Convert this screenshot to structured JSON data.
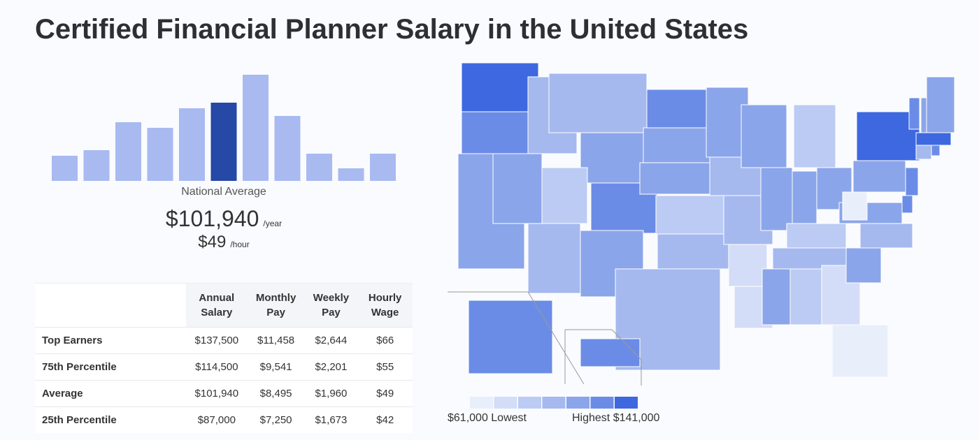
{
  "title": "Certified Financial Planner Salary in the United States",
  "histogram": {
    "type": "bar",
    "values": [
      36,
      44,
      84,
      76,
      104,
      112,
      152,
      93,
      39,
      18,
      39
    ],
    "color": "#a9baf1",
    "highlight_color": "#2648a6",
    "highlight_index": 5
  },
  "national": {
    "label": "National Average",
    "yearly": "$101,940",
    "yearly_unit": "/year",
    "hourly": "$49",
    "hourly_unit": "/hour"
  },
  "table": {
    "headers": [
      "Annual Salary",
      "Monthly Pay",
      "Weekly Pay",
      "Hourly Wage"
    ],
    "rows": [
      {
        "label": "Top Earners",
        "cells": [
          "$137,500",
          "$11,458",
          "$2,644",
          "$66"
        ]
      },
      {
        "label": "75th Percentile",
        "cells": [
          "$114,500",
          "$9,541",
          "$2,201",
          "$55"
        ]
      },
      {
        "label": "Average",
        "cells": [
          "$101,940",
          "$8,495",
          "$1,960",
          "$49"
        ]
      },
      {
        "label": "25th Percentile",
        "cells": [
          "$87,000",
          "$7,250",
          "$1,673",
          "$42"
        ]
      }
    ]
  },
  "map": {
    "region_levels": [
      6,
      5,
      4,
      4,
      3,
      3,
      4,
      2,
      5,
      3,
      4,
      5,
      4,
      4,
      2,
      3,
      3,
      4,
      3,
      3,
      1,
      1,
      4,
      4,
      2,
      4,
      4,
      2,
      3,
      4,
      2,
      1,
      0,
      4,
      3,
      4,
      0,
      4,
      6,
      5,
      5,
      5,
      4,
      4,
      6,
      3,
      5,
      5,
      5
    ],
    "legend": {
      "colors": [
        "#e9eefb",
        "#d3ddf7",
        "#bccbf3",
        "#a5b9ef",
        "#8ba5ea",
        "#6b8ce6",
        "#3d68e0"
      ],
      "low_label": "$61,000 Lowest",
      "high_label": "Highest $141,000"
    }
  }
}
